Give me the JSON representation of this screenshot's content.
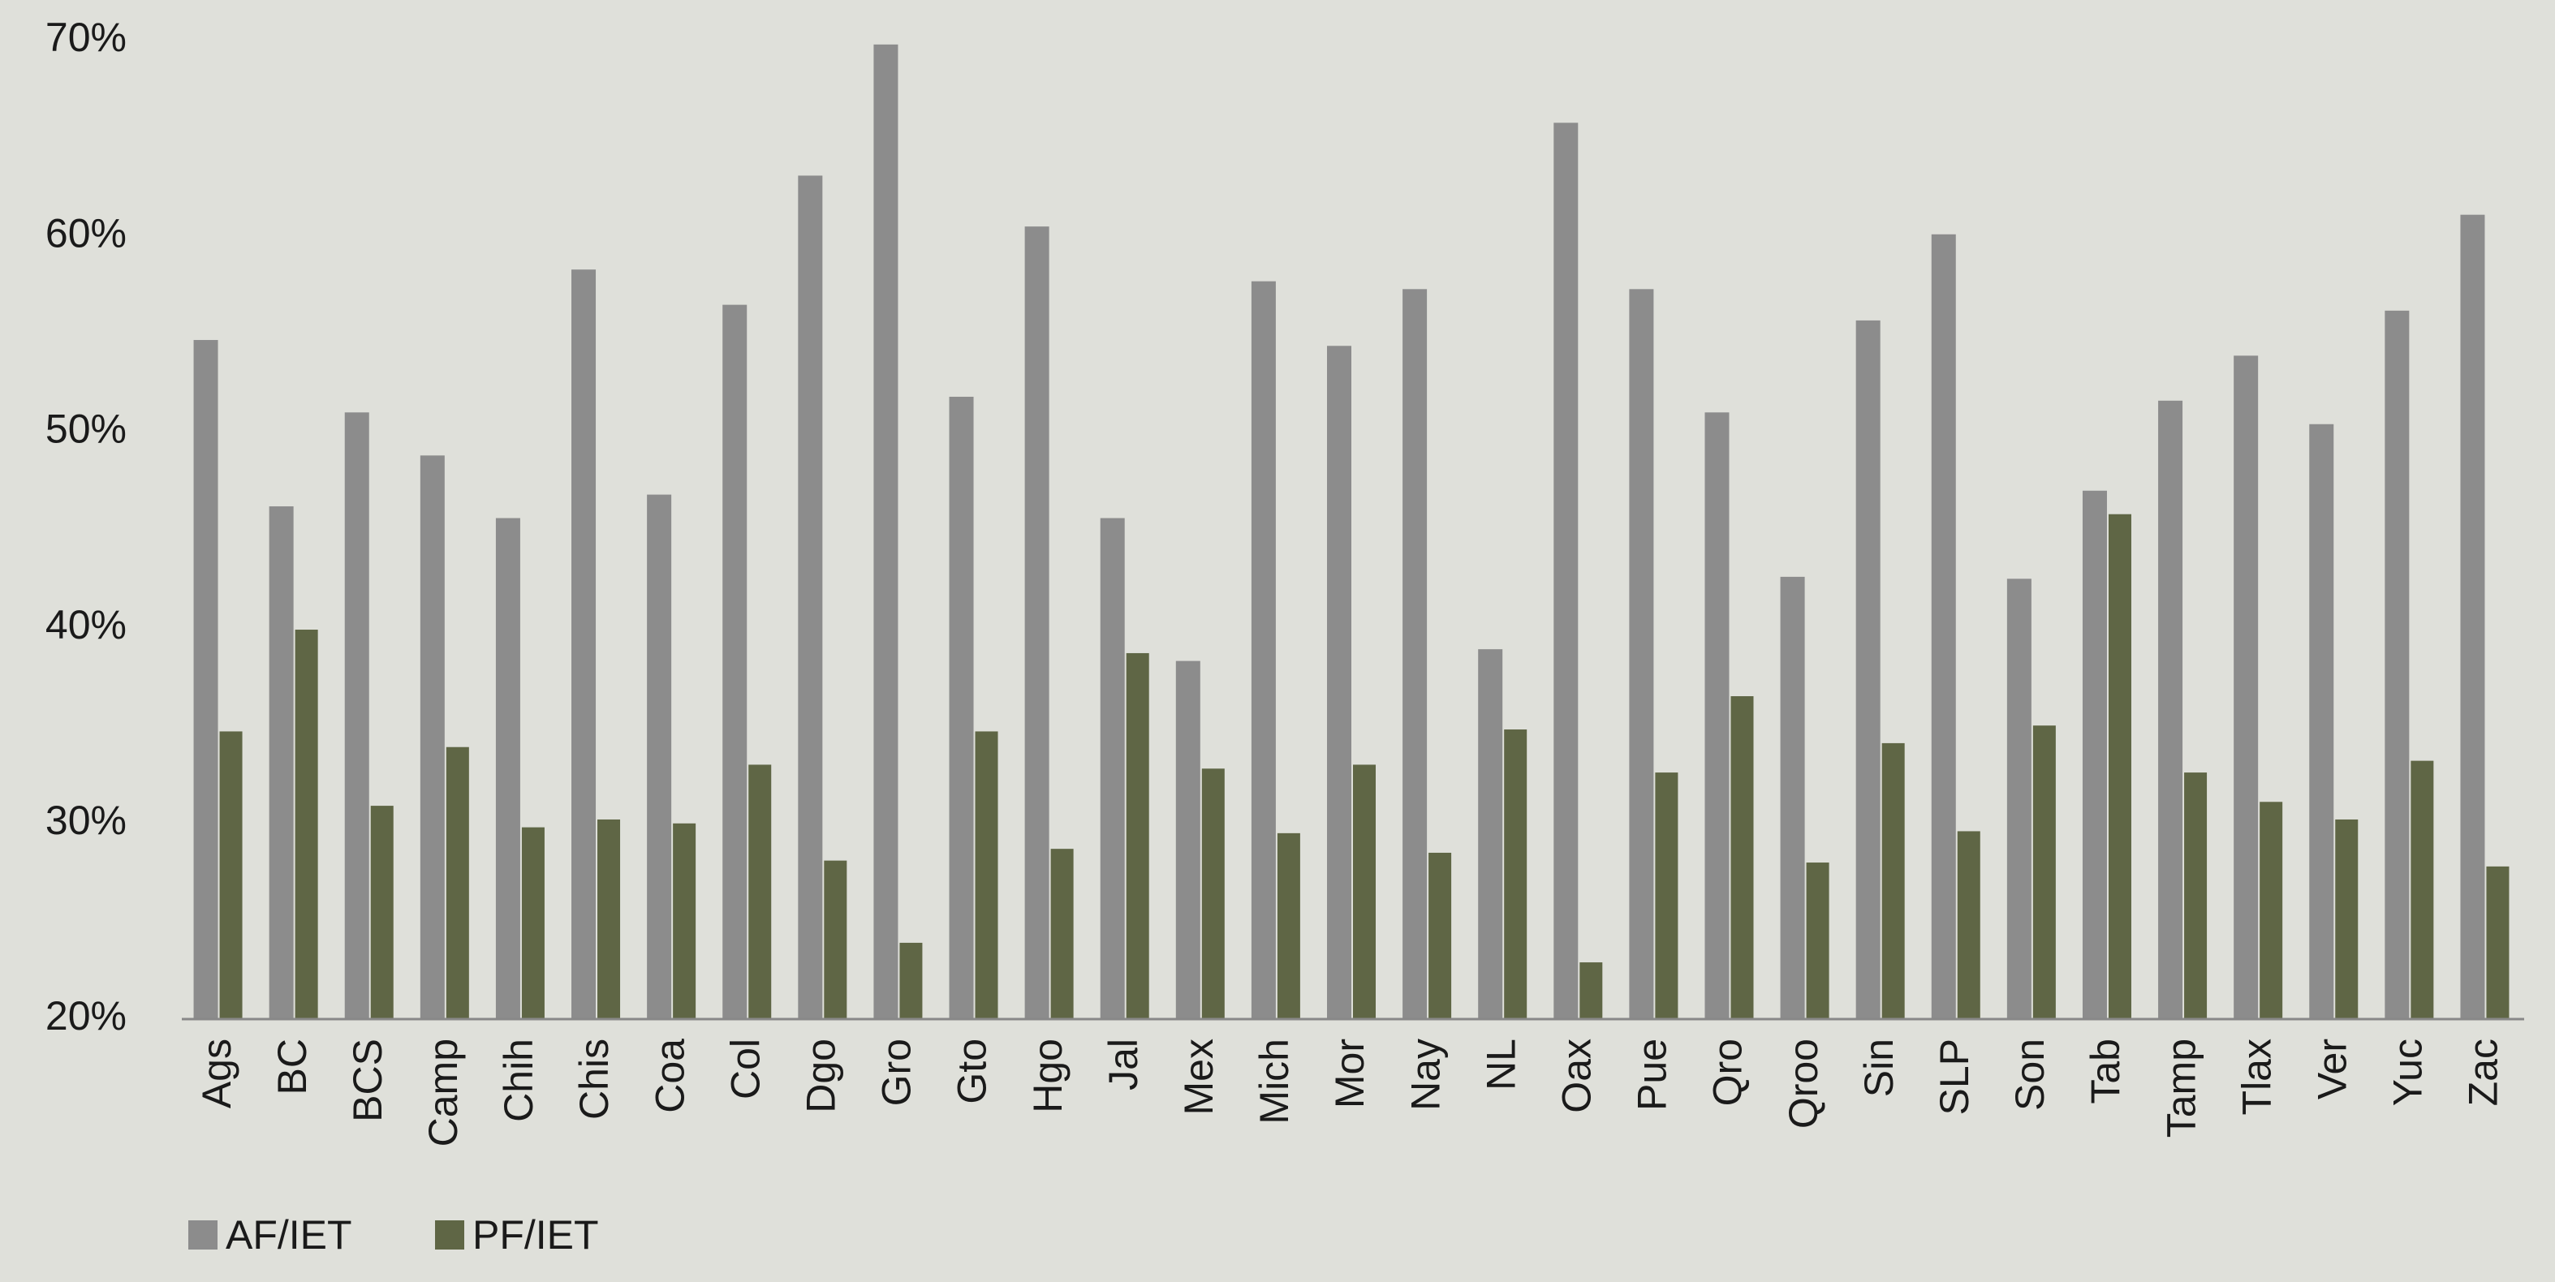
{
  "chart_data": {
    "type": "bar",
    "categories": [
      "Ags",
      "BC",
      "BCS",
      "Camp",
      "Chih",
      "Chis",
      "Coa",
      "Col",
      "Dgo",
      "Gro",
      "Gto",
      "Hgo",
      "Jal",
      "Mex",
      "Mich",
      "Mor",
      "Nay",
      "NL",
      "Oax",
      "Pue",
      "Qro",
      "Qroo",
      "Sin",
      "SLP",
      "Son",
      "Tab",
      "Tamp",
      "Tlax",
      "Ver",
      "Yuc",
      "Zac"
    ],
    "series": [
      {
        "name": "AF/IET",
        "color": "#8c8c8c",
        "values": [
          54.7,
          46.2,
          51.0,
          48.8,
          45.6,
          58.3,
          46.8,
          56.5,
          63.1,
          69.8,
          51.8,
          60.5,
          45.6,
          38.3,
          57.7,
          54.4,
          57.3,
          38.9,
          65.8,
          57.3,
          51.0,
          42.6,
          55.7,
          60.1,
          42.5,
          47.0,
          51.6,
          53.9,
          50.4,
          56.2,
          61.1
        ]
      },
      {
        "name": "PF/IET",
        "color": "#5f6645",
        "values": [
          34.7,
          39.9,
          30.9,
          33.9,
          29.8,
          30.2,
          30.0,
          33.0,
          28.1,
          23.9,
          34.7,
          28.7,
          38.7,
          32.8,
          29.5,
          33.0,
          28.5,
          34.8,
          22.9,
          32.6,
          36.5,
          28.0,
          34.1,
          29.6,
          35.0,
          45.8,
          32.6,
          31.1,
          30.2,
          33.2,
          27.8
        ]
      }
    ],
    "ylim": [
      20,
      70
    ],
    "yticks": [
      {
        "value": 20,
        "label": "20%"
      },
      {
        "value": 30,
        "label": "30%"
      },
      {
        "value": 40,
        "label": "40%"
      },
      {
        "value": 50,
        "label": "50%"
      },
      {
        "value": 60,
        "label": "60%"
      },
      {
        "value": 70,
        "label": "70%"
      }
    ],
    "grid": false,
    "legend": "bottom-left"
  }
}
